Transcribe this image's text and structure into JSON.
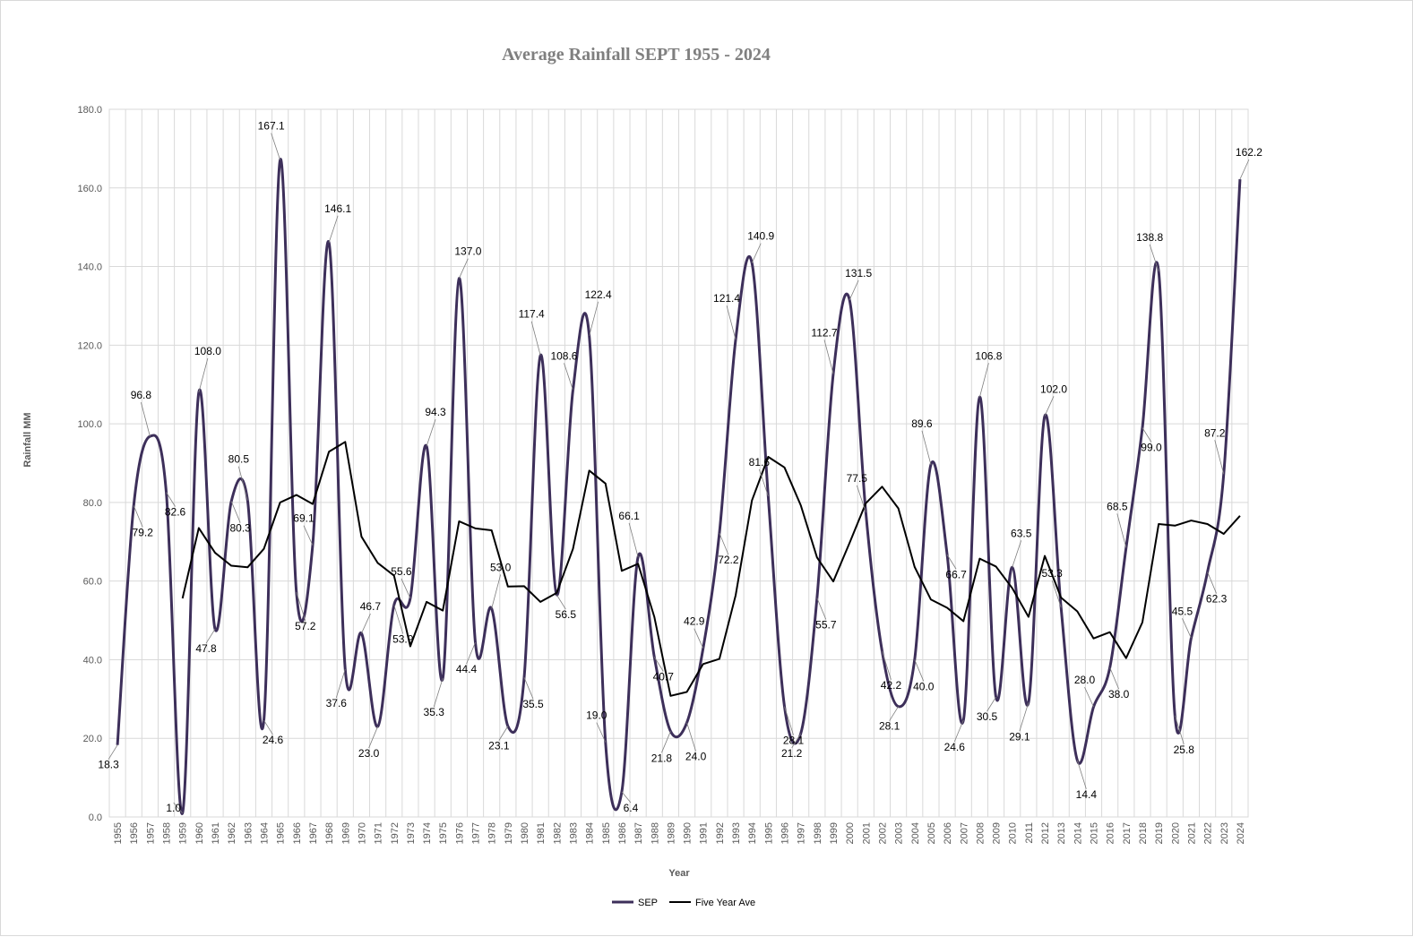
{
  "chart_data": {
    "type": "line",
    "title": "Average Rainfall SEPT 1955 - 2024",
    "xlabel": "Year",
    "ylabel": "Rainfall MM",
    "ylim": [
      0,
      180
    ],
    "yticks": [
      "0.0",
      "20.0",
      "40.0",
      "60.0",
      "80.0",
      "100.0",
      "120.0",
      "140.0",
      "160.0",
      "180.0"
    ],
    "grid": true,
    "legend_position": "bottom",
    "categories": [
      "1955",
      "1956",
      "1957",
      "1958",
      "1959",
      "1960",
      "1961",
      "1962",
      "1963",
      "1964",
      "1965",
      "1966",
      "1967",
      "1968",
      "1969",
      "1970",
      "1971",
      "1972",
      "1973",
      "1974",
      "1975",
      "1976",
      "1977",
      "1978",
      "1979",
      "1980",
      "1981",
      "1982",
      "1983",
      "1984",
      "1985",
      "1986",
      "1987",
      "1988",
      "1989",
      "1990",
      "1991",
      "1992",
      "1993",
      "1994",
      "1995",
      "1996",
      "1997",
      "1998",
      "1999",
      "2000",
      "2001",
      "2002",
      "2003",
      "2004",
      "2005",
      "2006",
      "2007",
      "2008",
      "2009",
      "2010",
      "2011",
      "2012",
      "2013",
      "2014",
      "2015",
      "2016",
      "2017",
      "2018",
      "2019",
      "2020",
      "2021",
      "2022",
      "2023",
      "2024"
    ],
    "series": [
      {
        "name": "SEP",
        "color": "#3d2f5a",
        "smooth": true,
        "values": [
          18.3,
          79.2,
          96.8,
          82.6,
          1.0,
          108.0,
          47.8,
          80.3,
          80.5,
          24.6,
          167.1,
          57.2,
          69.1,
          146.1,
          37.6,
          46.7,
          23.0,
          53.9,
          55.6,
          94.3,
          35.3,
          137.0,
          44.4,
          53.0,
          23.1,
          35.5,
          117.4,
          56.5,
          108.6,
          122.4,
          19.0,
          6.4,
          66.1,
          40.7,
          21.8,
          24.0,
          42.9,
          72.2,
          121.4,
          140.9,
          81.6,
          28.1,
          21.2,
          55.7,
          112.7,
          131.5,
          77.5,
          42.2,
          28.1,
          40.0,
          89.6,
          66.7,
          24.6,
          106.8,
          30.5,
          63.5,
          29.1,
          102.0,
          53.3,
          14.4,
          28.0,
          38.0,
          68.5,
          99.0,
          138.8,
          25.8,
          45.5,
          62.3,
          87.2,
          162.2
        ]
      },
      {
        "name": "Five Year Ave",
        "color": "#000000",
        "smooth": false,
        "values": [
          null,
          null,
          null,
          null,
          55.6,
          73.5,
          67.2,
          63.9,
          63.5,
          68.2,
          80.0,
          81.9,
          79.6,
          92.9,
          95.4,
          71.3,
          64.6,
          61.4,
          43.4,
          54.7,
          52.5,
          75.2,
          73.4,
          72.9,
          58.6,
          58.7,
          54.7,
          57.0,
          68.2,
          88.1,
          84.8,
          62.6,
          64.4,
          50.9,
          30.8,
          31.8,
          38.9,
          40.2,
          56.4,
          80.5,
          91.6,
          88.9,
          79.3,
          66.0,
          59.9,
          69.7,
          79.8,
          84.0,
          78.5,
          63.6,
          55.3,
          53.2,
          49.8,
          65.7,
          63.7,
          58.2,
          50.9,
          66.4,
          55.8,
          52.3,
          45.4,
          47.0,
          40.4,
          49.5,
          74.5,
          74.1,
          75.4,
          74.5,
          72.0,
          76.6
        ]
      }
    ],
    "data_labels": [
      "18.3",
      "79.2",
      "96.8",
      "82.6",
      "1.0",
      "108.0",
      "47.8",
      "80.3",
      "80.5",
      "24.6",
      "167.1",
      "57.2",
      "69.1",
      "146.1",
      "37.6",
      "46.7",
      "23.0",
      "53.9",
      "55.6",
      "94.3",
      "35.3",
      "137.0",
      "44.4",
      "53.0",
      "23.1",
      "35.5",
      "117.4",
      "56.5",
      "108.6",
      "122.4",
      "19.0",
      "6.4",
      "66.1",
      "40.7",
      "21.8",
      "24.0",
      "42.9",
      "72.2",
      "121.4",
      "140.9",
      "81.6",
      "28.1",
      "21.2",
      "55.7",
      "112.7",
      "131.5",
      "77.5",
      "42.2",
      "28.1",
      "40.0",
      "89.6",
      "66.7",
      "24.6",
      "106.8",
      "30.5",
      "63.5",
      "29.1",
      "102.0",
      "53.3",
      "14.4",
      "28.0",
      "38.0",
      "68.5",
      "99.0",
      "138.8",
      "25.8",
      "45.5",
      "62.3",
      "87.2",
      "162.2"
    ]
  }
}
